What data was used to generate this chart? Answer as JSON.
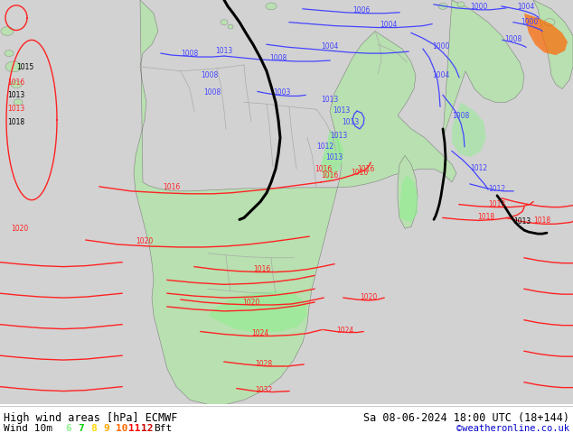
{
  "title_left": "High wind areas [hPa] ECMWF",
  "title_right": "Sa 08-06-2024 18:00 UTC (18+144)",
  "legend_label": "Wind 10m",
  "legend_values": [
    "6",
    "7",
    "8",
    "9",
    "10",
    "11",
    "12"
  ],
  "legend_colors": [
    "#90ee90",
    "#00cd00",
    "#ffd700",
    "#ffa500",
    "#ff6600",
    "#ff0000",
    "#cc0000"
  ],
  "legend_suffix": "Bft",
  "copyright": "©weatheronline.co.uk",
  "bg_color": "#ffffff",
  "land_green": "#b8e0b0",
  "ocean_gray": "#d2d2d2",
  "wind_light_green": "#90ee90",
  "figsize": [
    6.34,
    4.9
  ],
  "dpi": 100
}
